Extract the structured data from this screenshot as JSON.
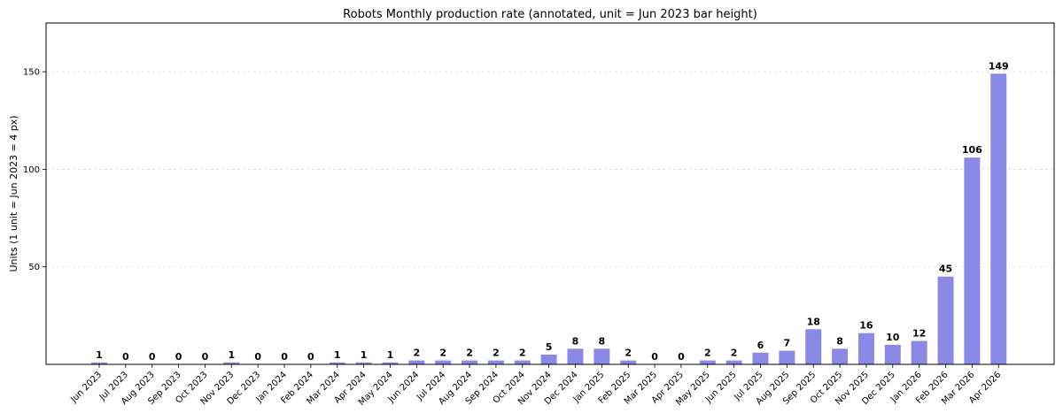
{
  "chart_data": {
    "type": "bar",
    "title": "Robots Monthly production rate (annotated, unit = Jun 2023 bar height)",
    "xlabel": "",
    "ylabel": "Units (1 unit = Jun 2023 = 4 px)",
    "ylim": [
      0,
      175
    ],
    "yticks": [
      50,
      100,
      150
    ],
    "grid": true,
    "bar_color": "#8a8ae6",
    "categories": [
      "Jun 2023",
      "Jul 2023",
      "Aug 2023",
      "Sep 2023",
      "Oct 2023",
      "Nov 2023",
      "Dec 2023",
      "Jan 2024",
      "Feb 2024",
      "Mar 2024",
      "Apr 2024",
      "May 2024",
      "Jun 2024",
      "Jul 2024",
      "Aug 2024",
      "Sep 2024",
      "Oct 2024",
      "Nov 2024",
      "Dec 2024",
      "Jan 2025",
      "Feb 2025",
      "Mar 2025",
      "Apr 2025",
      "May 2025",
      "Jun 2025",
      "Jul 2025",
      "Aug 2025",
      "Sep 2025",
      "Oct 2025",
      "Nov 2025",
      "Dec 2025",
      "Jan 2026",
      "Feb 2026",
      "Mar 2026",
      "Apr 2026"
    ],
    "values": [
      1,
      0,
      0,
      0,
      0,
      1,
      0,
      0,
      0,
      1,
      1,
      1,
      2,
      2,
      2,
      2,
      2,
      5,
      8,
      8,
      2,
      0,
      0,
      2,
      2,
      6,
      7,
      18,
      8,
      16,
      10,
      12,
      45,
      106,
      149
    ]
  }
}
